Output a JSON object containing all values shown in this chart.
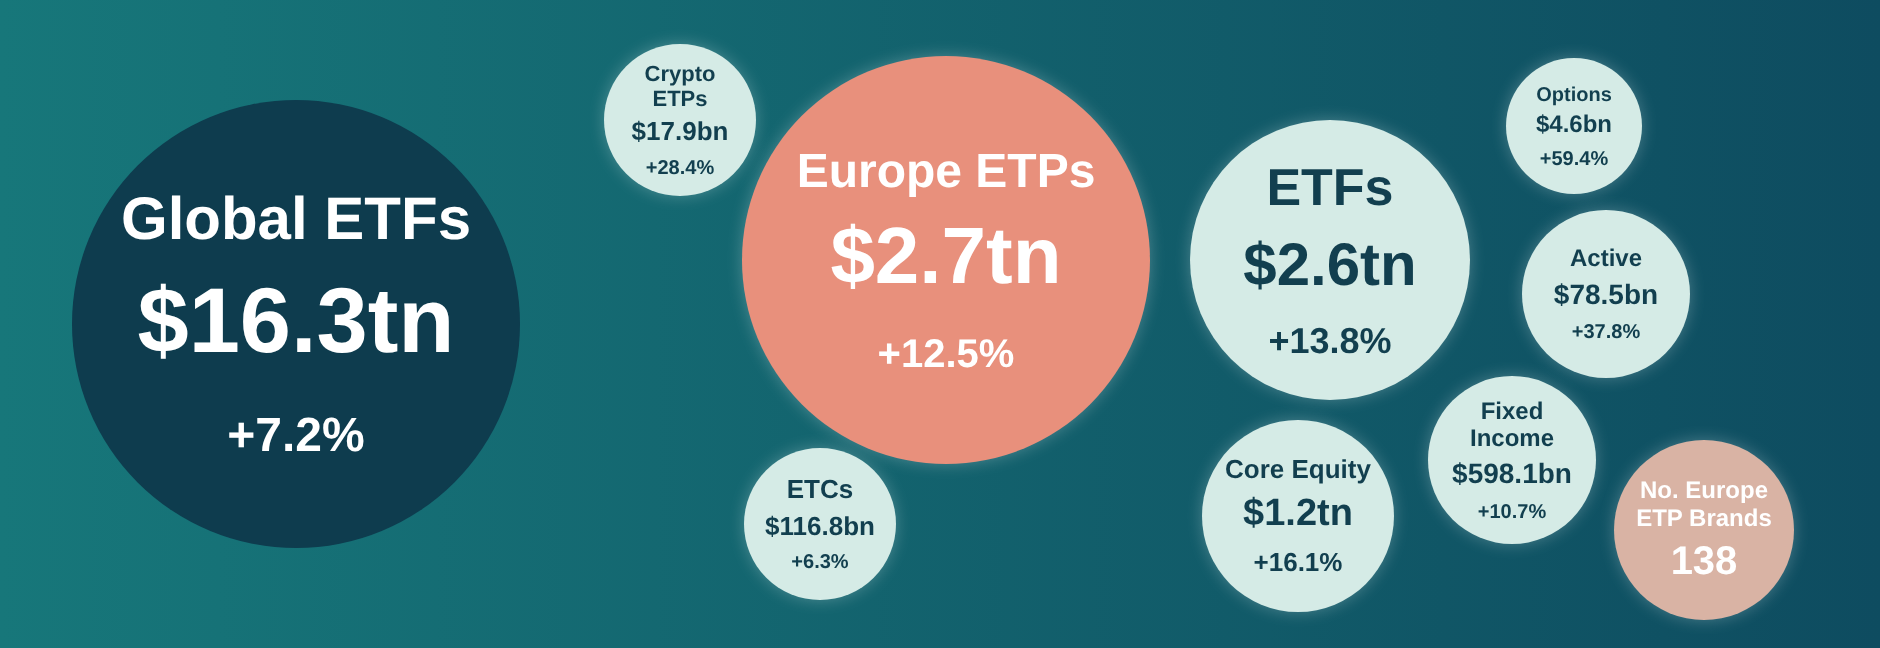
{
  "chart_data": {
    "type": "other",
    "categories": [
      "Global ETFs",
      "Europe ETPs",
      "Crypto ETPs",
      "ETCs",
      "ETFs",
      "Options",
      "Active",
      "Core Equity",
      "Fixed Income",
      "No. Europe ETP Brands"
    ],
    "series": [
      {
        "colors": [
          "#0e3c4e",
          "#e8907c",
          "#d5ebe6",
          "#d5ebe6",
          "#d5ebe6",
          "#d5ebe6",
          "#d5ebe6",
          "#d5ebe6",
          "#d5ebe6",
          "#d9b3a4"
        ],
        "values": [
          16.3,
          2.7,
          17.9,
          116.8,
          2.6,
          4.6,
          78.5,
          1.2,
          598.1,
          138
        ],
        "value_labels": [
          "$16.3tn",
          "$2.7tn",
          "$17.9bn",
          "$116.8bn",
          "$2.6tn",
          "$4.6bn",
          "$78.5bn",
          "$1.2tn",
          "$598.1bn",
          "138"
        ]
      },
      {
        "values": [
          7.2,
          12.5,
          28.4,
          6.3,
          13.8,
          59.4,
          37.8,
          16.1,
          10.7,
          null
        ],
        "value_labels": [
          "+7.2%",
          "+12.5%",
          "+28.4%",
          "+6.3%",
          "+13.8%",
          "+59.4%",
          "+37.8%",
          "+16.1%",
          "+10.7%",
          null
        ]
      }
    ]
  }
}
